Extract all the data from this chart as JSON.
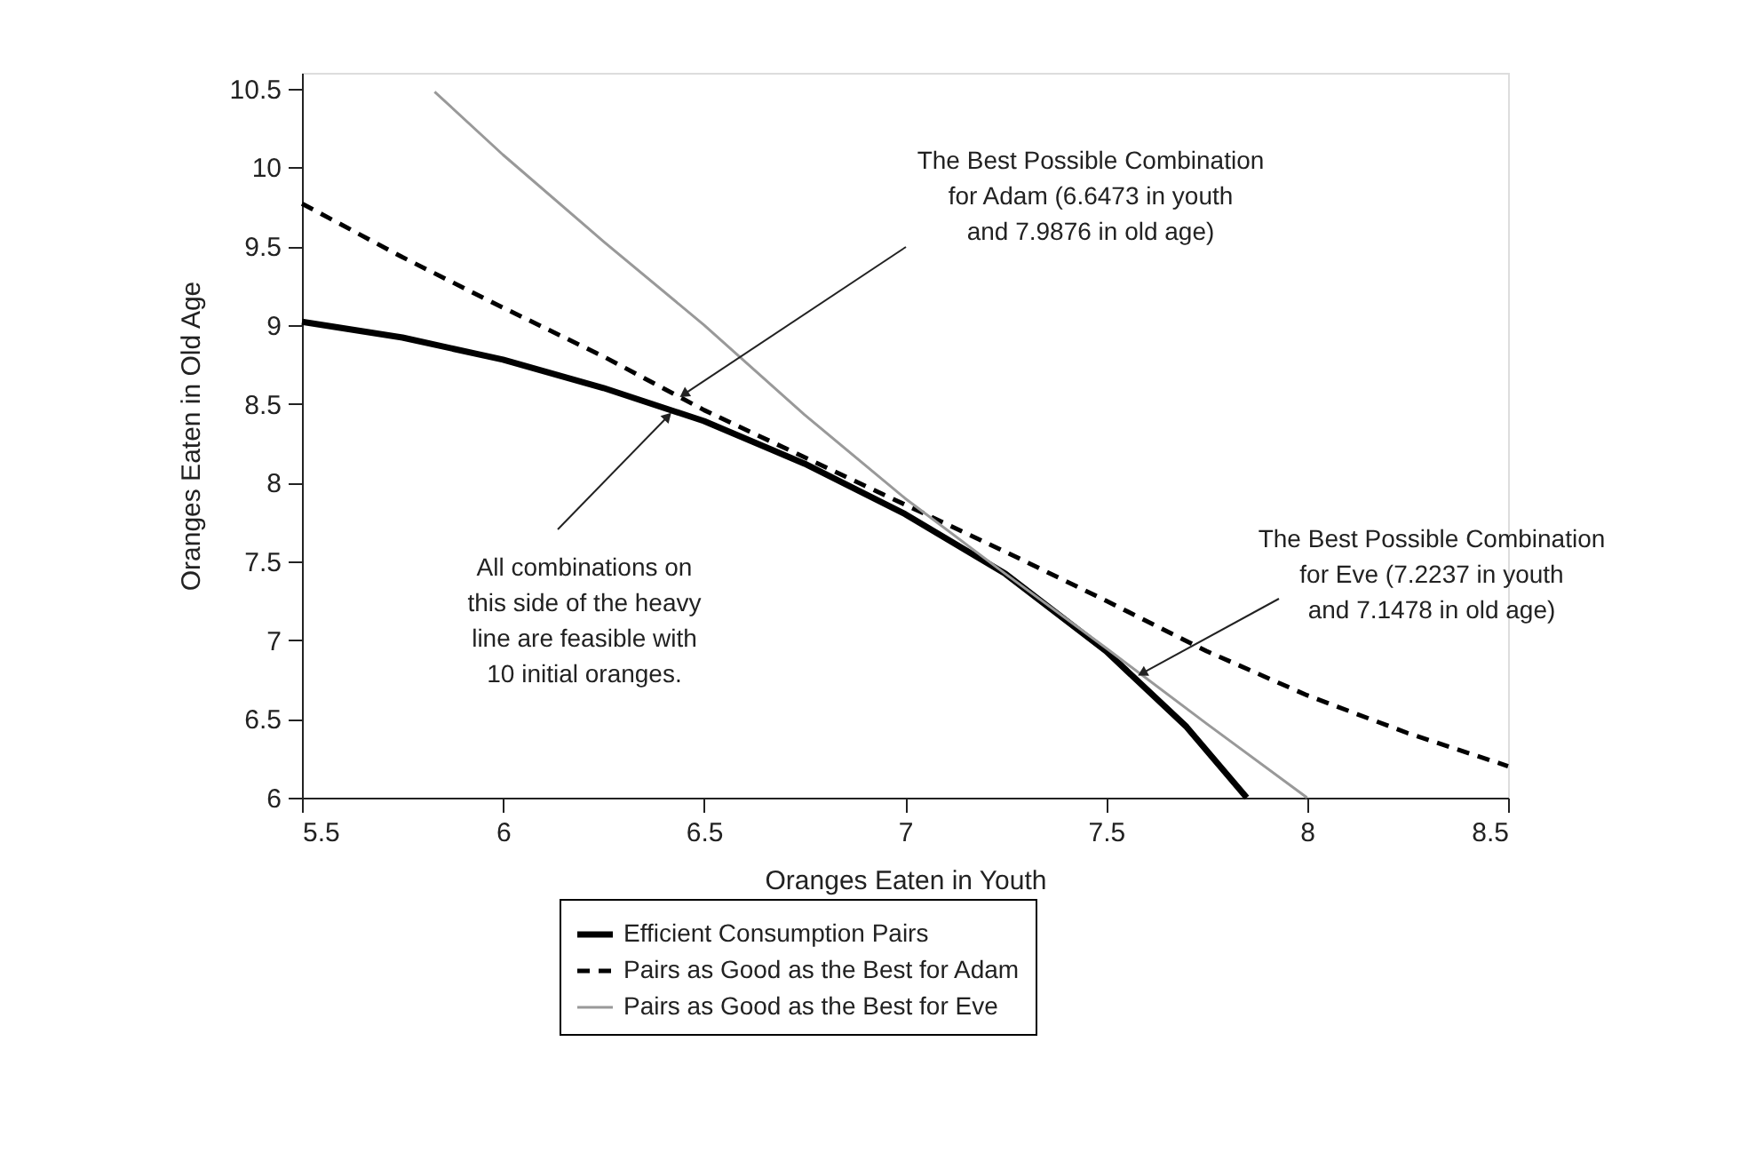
{
  "chart_data": {
    "type": "line",
    "xlabel": "Oranges Eaten in Youth",
    "ylabel": "Oranges Eaten in Old Age",
    "xlim": [
      5.5,
      8.5
    ],
    "xticks": [
      5.5,
      6,
      6.5,
      7,
      7.5,
      8,
      8.5
    ],
    "ylim": [
      6,
      10.6
    ],
    "yticks": [
      6,
      6.5,
      7,
      7.5,
      8,
      8.5,
      9,
      9.5,
      10,
      10.5
    ],
    "grid": false,
    "legend": "bottom",
    "marker": "none",
    "series": [
      {
        "name": "Efficient Consumption Pairs",
        "color": "#000000",
        "line_style": "solid",
        "x": [
          5.5,
          5.75,
          6,
          6.25,
          6.5,
          6.75,
          7,
          7.25,
          7.5,
          7.7,
          7.85
        ],
        "values": [
          9.02,
          8.92,
          8.78,
          8.6,
          8.39,
          8.12,
          7.8,
          7.42,
          6.93,
          6.45,
          6.0
        ]
      },
      {
        "name": "Pairs as Good as the Best for Adam",
        "color": "#000000",
        "line_style": "dashed",
        "x": [
          5.5,
          5.75,
          6,
          6.25,
          6.5,
          6.75,
          7,
          7.25,
          7.5,
          7.75,
          8,
          8.25,
          8.5
        ],
        "values": [
          9.77,
          9.43,
          9.11,
          8.8,
          8.46,
          8.16,
          7.86,
          7.56,
          7.25,
          6.93,
          6.65,
          6.41,
          6.2
        ]
      },
      {
        "name": "Pairs as Good as the Best for Eve",
        "color": "#999999",
        "line_style": "solid",
        "x": [
          5.83,
          6,
          6.25,
          6.5,
          6.75,
          7,
          7.25,
          7.5,
          7.75,
          8
        ],
        "values": [
          10.48,
          10.08,
          9.53,
          9.0,
          8.43,
          7.9,
          7.42,
          6.95,
          6.47,
          6.0
        ]
      }
    ],
    "annotations": [
      {
        "text": "The Best Possible Combination\nfor Adam (6.6473 in youth\nand 7.9876 in old age)",
        "x": 6.45,
        "y": 8.56
      },
      {
        "text": "The Best Possible Combination\nfor Eve (7.2237 in youth\nand 7.1478 in old age)",
        "x": 7.59,
        "y": 6.79
      },
      {
        "text": "All combinations on\nthis side of the heavy\nline are feasible with\n10 initial oranges.",
        "x": 6.41,
        "y": 8.42
      }
    ]
  }
}
